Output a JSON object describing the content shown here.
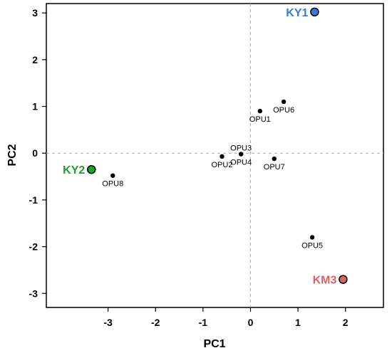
{
  "chart_data": {
    "type": "scatter",
    "xlabel": "PC1",
    "ylabel": "PC2",
    "xlim": [
      -4.3,
      2.8
    ],
    "ylim": [
      -3.3,
      3.2
    ],
    "xticks": [
      -3,
      -2,
      -1,
      0,
      1,
      2
    ],
    "yticks": [
      -3,
      -2,
      -1,
      0,
      1,
      2,
      3
    ],
    "xtick_labels": [
      "-3",
      "-2",
      "-1",
      "0",
      "1",
      "2"
    ],
    "ytick_labels": [
      "-3",
      "-2",
      "-1",
      "0",
      "1",
      "2",
      "3"
    ],
    "reference_lines": {
      "x": 0,
      "y": 0
    },
    "points": [
      {
        "label": "OPU1",
        "x": 0.2,
        "y": 0.9,
        "label_pos": "below"
      },
      {
        "label": "OPU2",
        "x": -0.6,
        "y": -0.07,
        "label_pos": "below"
      },
      {
        "label": "OPU3",
        "x": -0.2,
        "y": -0.02,
        "label_pos": "above"
      },
      {
        "label": "OPU4",
        "x": -0.2,
        "y": -0.02,
        "label_pos": "below"
      },
      {
        "label": "OPU5",
        "x": 1.3,
        "y": -1.8,
        "label_pos": "below"
      },
      {
        "label": "OPU6",
        "x": 0.7,
        "y": 1.1,
        "label_pos": "below"
      },
      {
        "label": "OPU7",
        "x": 0.5,
        "y": -0.12,
        "label_pos": "below"
      },
      {
        "label": "OPU8",
        "x": -2.9,
        "y": -0.48,
        "label_pos": "below"
      }
    ],
    "highlight_points": [
      {
        "label": "KY1",
        "x": 1.35,
        "y": 3.02,
        "color": "#3a7bd5",
        "label_pos": "left"
      },
      {
        "label": "KY2",
        "x": -3.35,
        "y": -0.35,
        "color": "#1e9e2e",
        "label_pos": "left"
      },
      {
        "label": "KM3",
        "x": 1.95,
        "y": -2.7,
        "color": "#e26060",
        "label_pos": "left"
      }
    ]
  }
}
